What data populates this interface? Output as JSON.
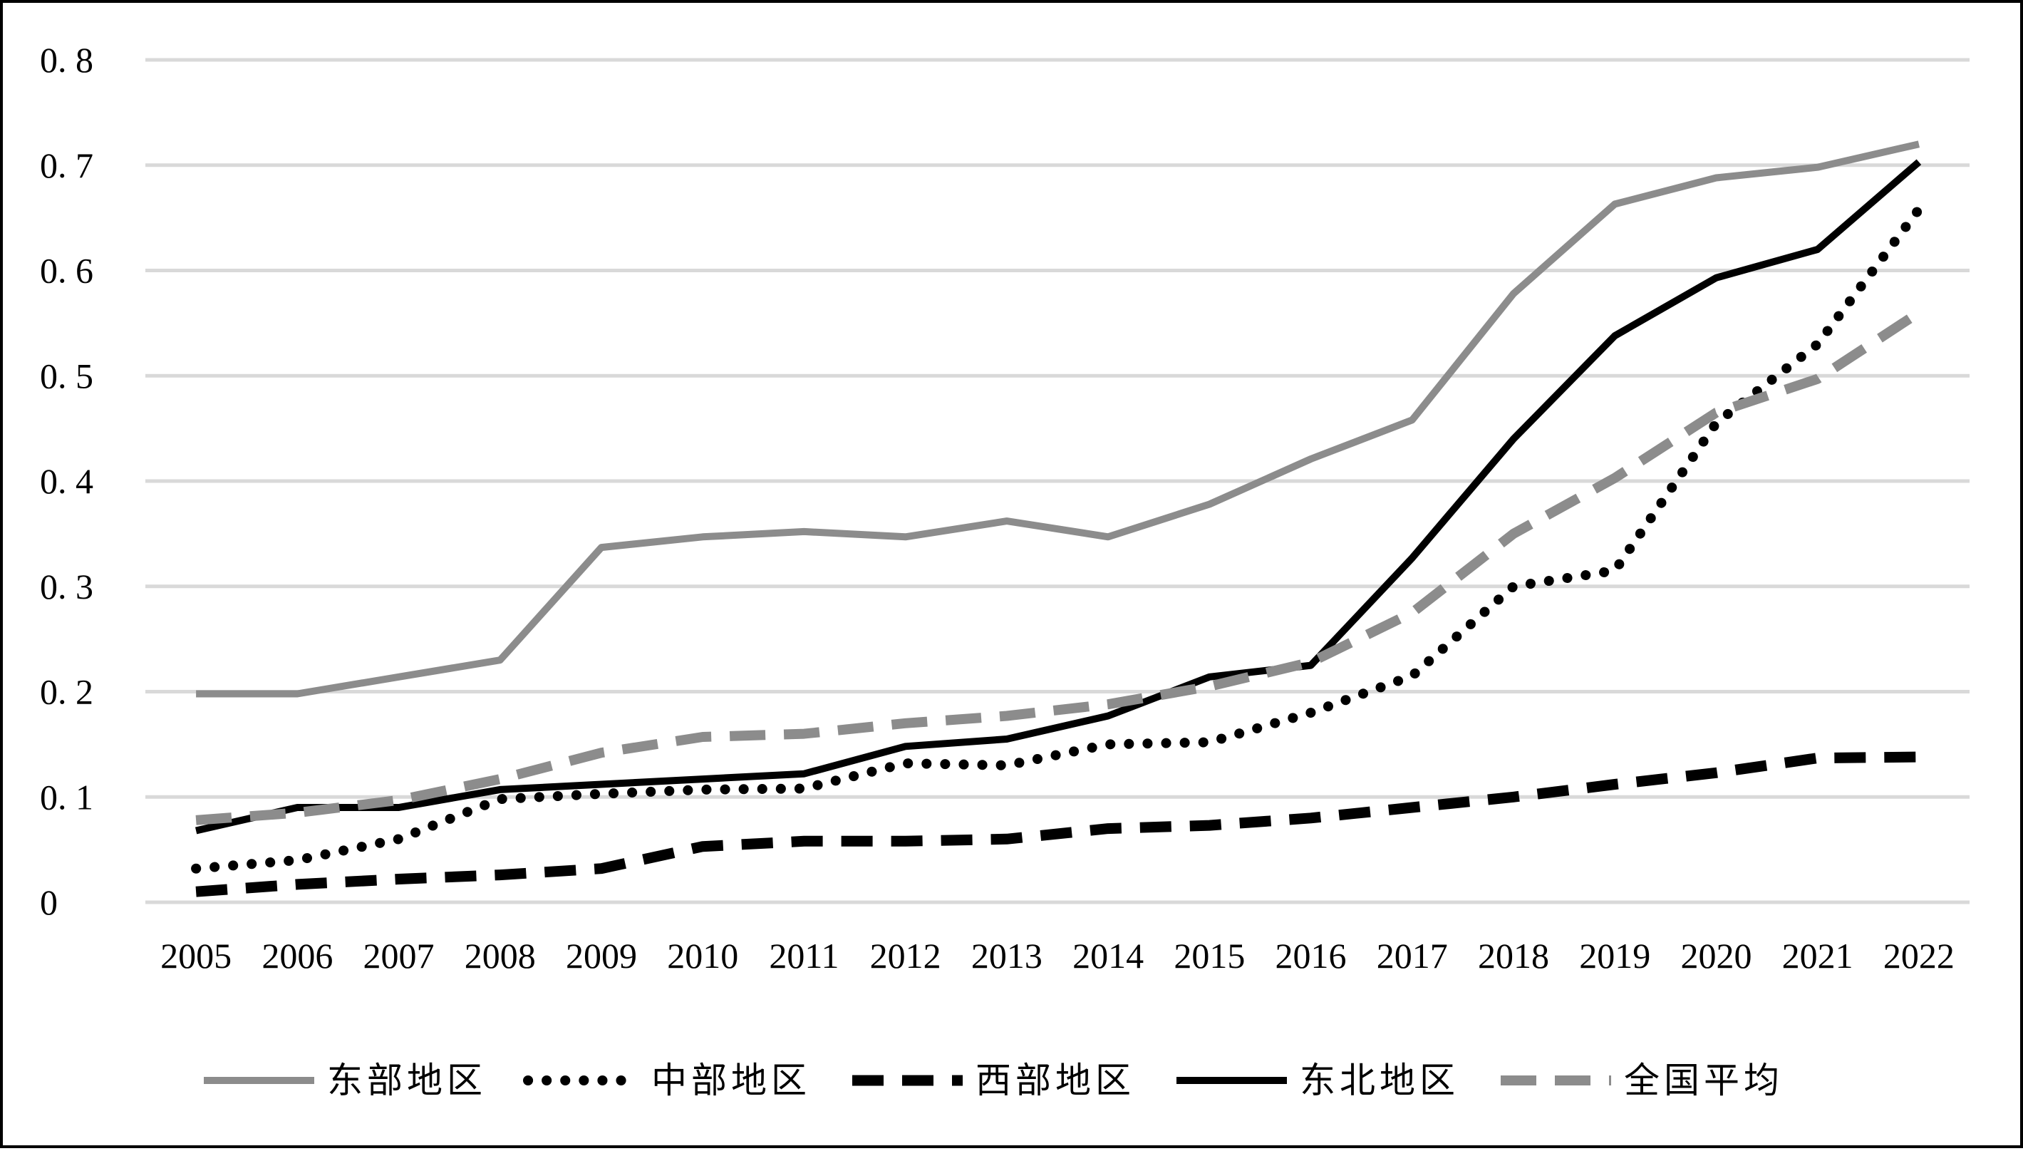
{
  "chart_data": {
    "type": "line",
    "title": "",
    "xlabel": "",
    "ylabel": "",
    "ylim": [
      0,
      0.8
    ],
    "ytick_labels": [
      "0",
      "0. 1",
      "0. 2",
      "0. 3",
      "0. 4",
      "0. 5",
      "0. 6",
      "0. 7",
      "0. 8"
    ],
    "categories": [
      "2005",
      "2006",
      "2007",
      "2008",
      "2009",
      "2010",
      "2011",
      "2012",
      "2013",
      "2014",
      "2015",
      "2016",
      "2017",
      "2018",
      "2019",
      "2020",
      "2021",
      "2022"
    ],
    "grid": "horizontal",
    "legend_position": "bottom",
    "series": [
      {
        "name": "东部地区",
        "style": "solid",
        "color": "#8c8c8c",
        "values": [
          0.198,
          0.198,
          0.214,
          0.23,
          0.337,
          0.347,
          0.352,
          0.347,
          0.362,
          0.347,
          0.378,
          0.421,
          0.458,
          0.578,
          0.663,
          0.688,
          0.698,
          0.72
        ]
      },
      {
        "name": "中部地区",
        "style": "dotted",
        "color": "#000000",
        "values": [
          0.032,
          0.04,
          0.06,
          0.098,
          0.103,
          0.107,
          0.108,
          0.132,
          0.13,
          0.15,
          0.152,
          0.18,
          0.215,
          0.3,
          0.315,
          0.455,
          0.53,
          0.658
        ]
      },
      {
        "name": "西部地区",
        "style": "dashed",
        "color": "#000000",
        "values": [
          0.01,
          0.017,
          0.022,
          0.026,
          0.032,
          0.053,
          0.058,
          0.058,
          0.06,
          0.07,
          0.073,
          0.08,
          0.09,
          0.1,
          0.112,
          0.123,
          0.137,
          0.138
        ]
      },
      {
        "name": "东北地区",
        "style": "solid",
        "color": "#000000",
        "values": [
          0.068,
          0.09,
          0.09,
          0.107,
          0.112,
          0.117,
          0.122,
          0.148,
          0.155,
          0.177,
          0.214,
          0.225,
          0.327,
          0.44,
          0.538,
          0.593,
          0.62,
          0.703
        ]
      },
      {
        "name": "全国平均",
        "style": "dashed",
        "color": "#8c8c8c",
        "values": [
          0.078,
          0.085,
          0.097,
          0.117,
          0.142,
          0.157,
          0.16,
          0.17,
          0.177,
          0.188,
          0.205,
          0.228,
          0.275,
          0.35,
          0.403,
          0.465,
          0.497,
          0.56
        ]
      }
    ]
  }
}
